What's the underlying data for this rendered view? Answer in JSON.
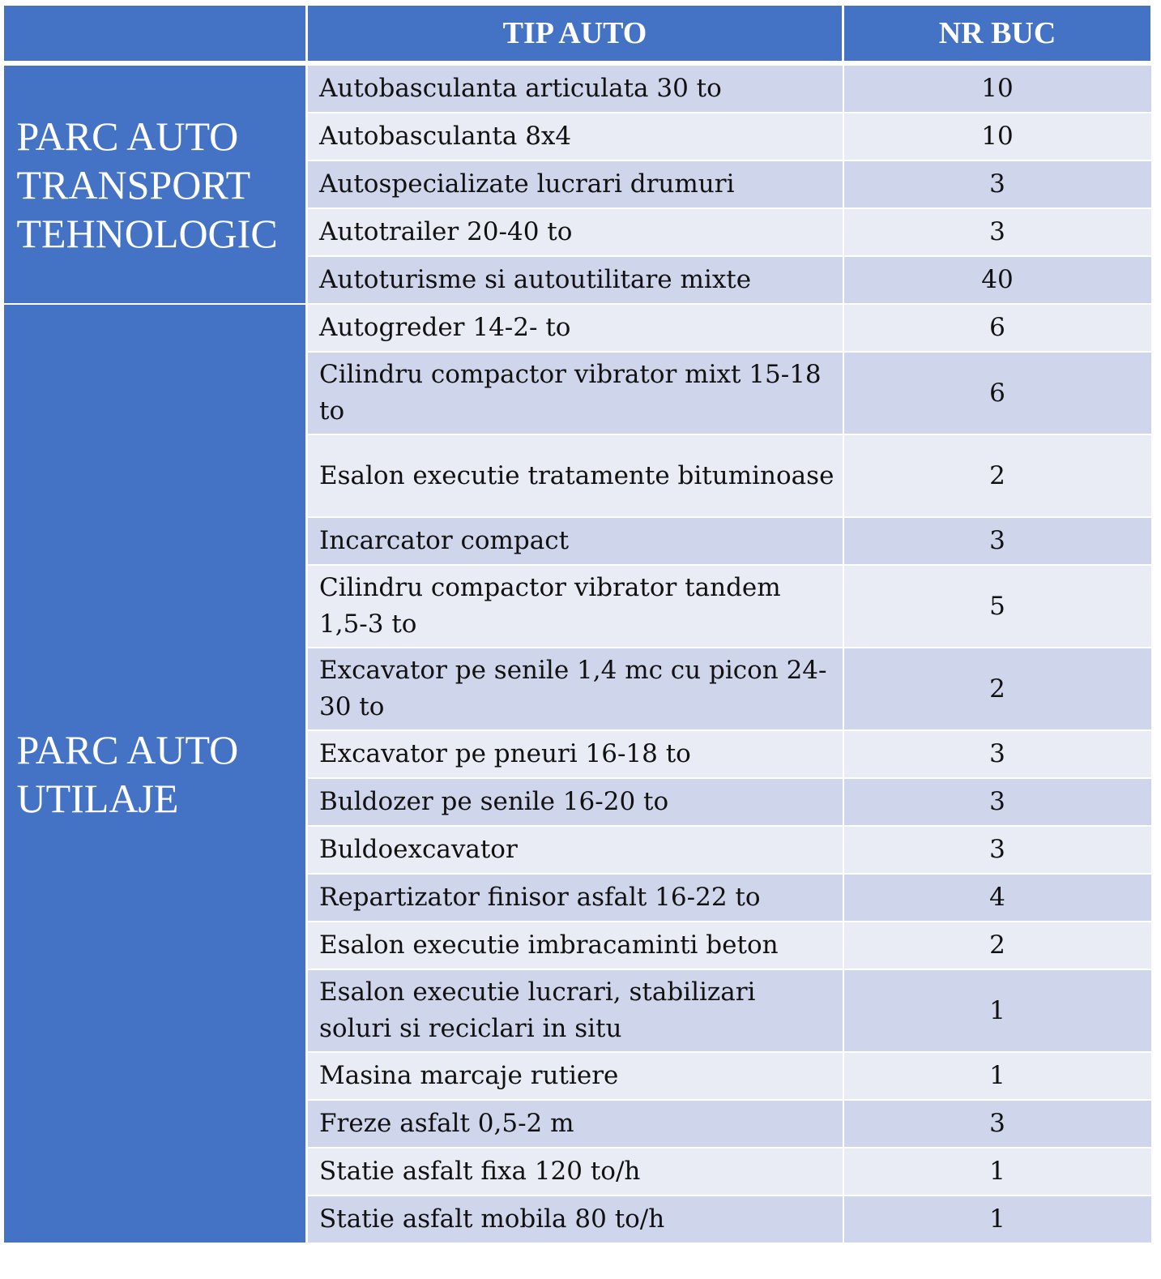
{
  "header": {
    "blank": "",
    "type": "TIP AUTO",
    "count": "NR BUC"
  },
  "groups": [
    {
      "label": "PARC AUTO TRANSPORT TEHNOLOGIC",
      "rows": [
        {
          "type": "Autobasculanta articulata 30 to",
          "count": "10"
        },
        {
          "type": "Autobasculanta 8x4",
          "count": "10"
        },
        {
          "type": "Autospecializate lucrari drumuri",
          "count": "3"
        },
        {
          "type": "Autotrailer 20-40 to",
          "count": "3"
        },
        {
          "type": "Autoturisme si autoutilitare mixte",
          "count": "40"
        }
      ]
    },
    {
      "label": "PARC AUTO UTILAJE",
      "rows": [
        {
          "type": "Autogreder 14-2- to",
          "count": "6"
        },
        {
          "type": "Cilindru compactor vibrator mixt 15-18 to",
          "count": "6"
        },
        {
          "type": "Esalon executie tratamente bituminoase",
          "count": "2"
        },
        {
          "type": "Incarcator compact",
          "count": "3"
        },
        {
          "type": "Cilindru compactor vibrator tandem 1,5-3 to",
          "count": "5"
        },
        {
          "type": "Excavator pe senile 1,4 mc cu picon 24-30 to",
          "count": "2"
        },
        {
          "type": "Excavator pe pneuri 16-18 to",
          "count": "3"
        },
        {
          "type": "Buldozer pe senile 16-20 to",
          "count": "3"
        },
        {
          "type": "Buldoexcavator",
          "count": "3"
        },
        {
          "type": "Repartizator finisor asfalt 16-22 to",
          "count": "4"
        },
        {
          "type": "Esalon executie imbracaminti beton",
          "count": "2"
        },
        {
          "type": "Esalon executie lucrari, stabilizari soluri si reciclari in situ",
          "count": "1"
        },
        {
          "type": "Masina marcaje rutiere",
          "count": "1"
        },
        {
          "type": "Freze asfalt 0,5-2 m",
          "count": "3"
        },
        {
          "type": "Statie asfalt fixa 120 to/h",
          "count": "1"
        },
        {
          "type": "Statie asfalt mobila 80 to/h",
          "count": "1"
        }
      ]
    }
  ],
  "colors": {
    "header_bg": "#4472c4",
    "row_odd": "#cfd5ea",
    "row_even": "#e9ebf5",
    "border": "#ffffff"
  }
}
